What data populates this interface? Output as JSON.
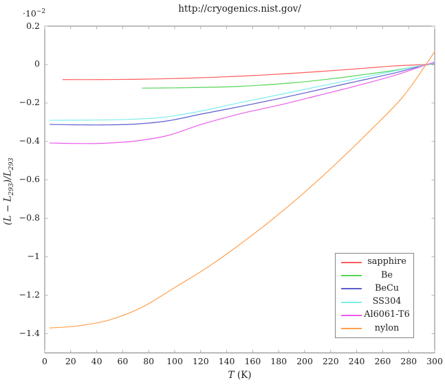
{
  "page_title": "http://cryogenics.nist.gov/",
  "chart_data": {
    "type": "line",
    "title": "http://cryogenics.nist.gov/",
    "xlabel": {
      "var": "T",
      "rest": " (K)"
    },
    "ylabel": {
      "a": "(L − L",
      "sub_a": "293",
      "b": ")/L",
      "sub_b": "293"
    },
    "y_axis_multiplier": {
      "base": "·10",
      "exp": "−2"
    },
    "y_units_note": "y values are in units of 1e-2 (percent contraction relative to 293 K)",
    "xlim": [
      0,
      300
    ],
    "ylim": [
      -1.5,
      0.2
    ],
    "x_ticks": [
      0,
      20,
      40,
      60,
      80,
      100,
      120,
      140,
      160,
      180,
      200,
      220,
      240,
      260,
      280,
      300
    ],
    "y_ticks": [
      0.2,
      0,
      -0.2,
      -0.4,
      -0.6,
      -0.8,
      -1,
      -1.2,
      -1.4
    ],
    "grid": false,
    "legend_position": "inside lower right",
    "frame_color": "#7d7d7d",
    "tick_color": "#b0b0b0",
    "series": [
      {
        "name": "sapphire",
        "color": "#ff5a5a",
        "points": [
          [
            14,
            -0.078
          ],
          [
            30,
            -0.0782
          ],
          [
            50,
            -0.0778
          ],
          [
            70,
            -0.0765
          ],
          [
            90,
            -0.0742
          ],
          [
            110,
            -0.0708
          ],
          [
            130,
            -0.0662
          ],
          [
            150,
            -0.0605
          ],
          [
            170,
            -0.0537
          ],
          [
            190,
            -0.0458
          ],
          [
            210,
            -0.0369
          ],
          [
            230,
            -0.0272
          ],
          [
            250,
            -0.0169
          ],
          [
            270,
            -0.0067
          ],
          [
            293,
            0.0005
          ],
          [
            300,
            0.002
          ]
        ]
      },
      {
        "name": "Be",
        "color": "#55d555",
        "points": [
          [
            75,
            -0.1225
          ],
          [
            90,
            -0.1218
          ],
          [
            110,
            -0.1202
          ],
          [
            130,
            -0.1178
          ],
          [
            150,
            -0.1132
          ],
          [
            170,
            -0.1058
          ],
          [
            190,
            -0.0955
          ],
          [
            210,
            -0.0822
          ],
          [
            230,
            -0.0663
          ],
          [
            250,
            -0.0483
          ],
          [
            270,
            -0.0288
          ],
          [
            293,
            -0.002
          ],
          [
            300,
            0.004
          ]
        ]
      },
      {
        "name": "BeCu",
        "color": "#5c5ccd",
        "points": [
          [
            4,
            -0.3115
          ],
          [
            25,
            -0.3135
          ],
          [
            45,
            -0.314
          ],
          [
            70,
            -0.3095
          ],
          [
            95,
            -0.2925
          ],
          [
            120,
            -0.258
          ],
          [
            150,
            -0.219
          ],
          [
            180,
            -0.1775
          ],
          [
            210,
            -0.1325
          ],
          [
            240,
            -0.0875
          ],
          [
            270,
            -0.0425
          ],
          [
            293,
            -0.0015
          ],
          [
            300,
            0.0055
          ]
        ]
      },
      {
        "name": "SS304",
        "color": "#7deded",
        "points": [
          [
            4,
            -0.29
          ],
          [
            30,
            -0.289
          ],
          [
            60,
            -0.286
          ],
          [
            90,
            -0.275
          ],
          [
            120,
            -0.2425
          ],
          [
            150,
            -0.1985
          ],
          [
            180,
            -0.157
          ],
          [
            210,
            -0.115
          ],
          [
            240,
            -0.0735
          ],
          [
            270,
            -0.032
          ],
          [
            293,
            -0.001
          ],
          [
            300,
            0.0075
          ]
        ]
      },
      {
        "name": "Al6061-T6",
        "color": "#ea5cea",
        "points": [
          [
            4,
            -0.408
          ],
          [
            25,
            -0.4105
          ],
          [
            45,
            -0.4095
          ],
          [
            70,
            -0.3975
          ],
          [
            95,
            -0.3685
          ],
          [
            120,
            -0.3125
          ],
          [
            150,
            -0.2565
          ],
          [
            180,
            -0.2115
          ],
          [
            210,
            -0.1615
          ],
          [
            240,
            -0.1105
          ],
          [
            270,
            -0.0545
          ],
          [
            293,
            -0.002
          ],
          [
            300,
            0.0125
          ]
        ]
      },
      {
        "name": "nylon",
        "color": "#ffa04d",
        "points": [
          [
            4,
            -1.37
          ],
          [
            25,
            -1.36
          ],
          [
            50,
            -1.328
          ],
          [
            75,
            -1.262
          ],
          [
            100,
            -1.16
          ],
          [
            125,
            -1.056
          ],
          [
            150,
            -0.936
          ],
          [
            175,
            -0.806
          ],
          [
            200,
            -0.664
          ],
          [
            225,
            -0.51
          ],
          [
            250,
            -0.346
          ],
          [
            275,
            -0.172
          ],
          [
            293,
            -0.003
          ],
          [
            300,
            0.068
          ]
        ]
      }
    ]
  }
}
